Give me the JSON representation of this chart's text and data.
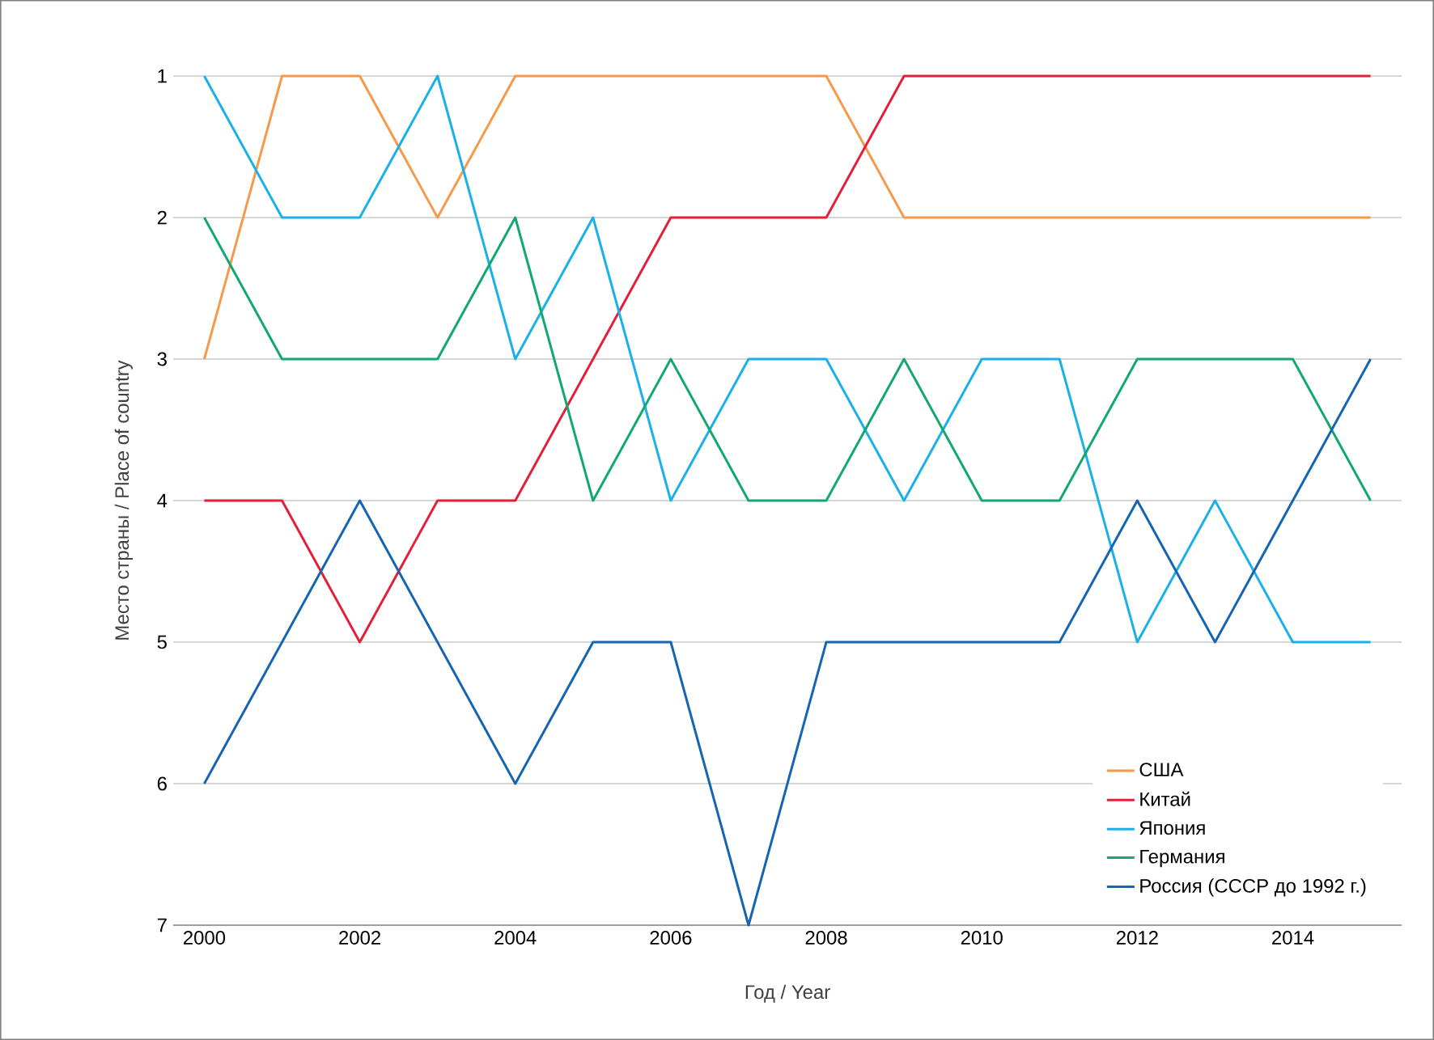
{
  "chart_data": {
    "type": "line",
    "xlabel": "Год / Year",
    "ylabel": "Место страны / Place of country",
    "x": [
      2000,
      2001,
      2002,
      2003,
      2004,
      2005,
      2006,
      2007,
      2008,
      2009,
      2010,
      2011,
      2012,
      2013,
      2014,
      2015
    ],
    "series": [
      {
        "name": "США",
        "color": "#f59a4a",
        "values": [
          3,
          1,
          1,
          2,
          1,
          1,
          1,
          1,
          1,
          2,
          2,
          2,
          2,
          2,
          2,
          2
        ]
      },
      {
        "name": "Китай",
        "color": "#e3203a",
        "values": [
          4,
          4,
          5,
          4,
          4,
          3,
          2,
          2,
          2,
          1,
          1,
          1,
          1,
          1,
          1,
          1
        ]
      },
      {
        "name": "Япония",
        "color": "#1ab0e8",
        "values": [
          1,
          2,
          2,
          1,
          3,
          2,
          4,
          3,
          3,
          4,
          3,
          3,
          5,
          4,
          5,
          5
        ]
      },
      {
        "name": "Германия",
        "color": "#12a870",
        "values": [
          2,
          3,
          3,
          3,
          2,
          4,
          3,
          4,
          4,
          3,
          4,
          4,
          3,
          3,
          3,
          4
        ]
      },
      {
        "name": "Россия (СССР до 1992 г.)",
        "color": "#1565b0",
        "values": [
          6,
          5,
          4,
          5,
          6,
          5,
          5,
          7,
          5,
          5,
          5,
          5,
          4,
          5,
          4,
          3
        ]
      }
    ],
    "xlim": [
      1999.6,
      2015.4
    ],
    "ylim": [
      7,
      1
    ],
    "xticks": [
      2000,
      2002,
      2004,
      2006,
      2008,
      2010,
      2012,
      2014
    ],
    "yticks": [
      1,
      2,
      3,
      4,
      5,
      6,
      7
    ],
    "grid": "y",
    "legend": "bottom right",
    "line_style": "solid"
  }
}
